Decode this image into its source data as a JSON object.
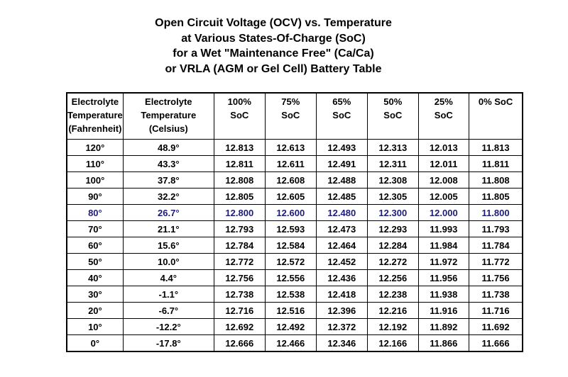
{
  "title": [
    "Open Circuit Voltage (OCV) vs. Temperature",
    "at Various States-Of-Charge (SoC)",
    "for a Wet \"Maintenance Free\" (Ca/Ca)",
    "or VRLA (AGM or Gel Cell) Battery Table"
  ],
  "table": {
    "header": [
      [
        "Electrolyte",
        "Temperature",
        "(Fahrenheit)"
      ],
      [
        "Electrolyte",
        "Temperature",
        "(Celsius)"
      ],
      [
        "100%",
        "SoC"
      ],
      [
        "75%",
        "SoC"
      ],
      [
        "65%",
        "SoC"
      ],
      [
        "50%",
        "SoC"
      ],
      [
        "25%",
        "SoC"
      ],
      [
        "0% SoC"
      ]
    ],
    "rows": [
      {
        "color": "#000000",
        "cells": [
          "120°",
          "48.9°",
          "12.813",
          "12.613",
          "12.493",
          "12.313",
          "12.013",
          "11.813"
        ]
      },
      {
        "color": "#000000",
        "cells": [
          "110°",
          "43.3°",
          "12.811",
          "12.611",
          "12.491",
          "12.311",
          "12.011",
          "11.811"
        ]
      },
      {
        "color": "#000000",
        "cells": [
          "100°",
          "37.8°",
          "12.808",
          "12.608",
          "12.488",
          "12.308",
          "12.008",
          "11.808"
        ]
      },
      {
        "color": "#000000",
        "cells": [
          "90°",
          "32.2°",
          "12.805",
          "12.605",
          "12.485",
          "12.305",
          "12.005",
          "11.805"
        ]
      },
      {
        "color": "#1c1c7a",
        "cells": [
          "80°",
          "26.7°",
          "12.800",
          "12.600",
          "12.480",
          "12.300",
          "12.000",
          "11.800"
        ]
      },
      {
        "color": "#000000",
        "cells": [
          "70°",
          "21.1°",
          "12.793",
          "12.593",
          "12.473",
          "12.293",
          "11.993",
          "11.793"
        ]
      },
      {
        "color": "#000000",
        "cells": [
          "60°",
          "15.6°",
          "12.784",
          "12.584",
          "12.464",
          "12.284",
          "11.984",
          "11.784"
        ]
      },
      {
        "color": "#000000",
        "cells": [
          "50°",
          "10.0°",
          "12.772",
          "12.572",
          "12.452",
          "12.272",
          "11.972",
          "11.772"
        ]
      },
      {
        "color": "#000000",
        "cells": [
          "40°",
          "4.4°",
          "12.756",
          "12.556",
          "12.436",
          "12.256",
          "11.956",
          "11.756"
        ]
      },
      {
        "color": "#000000",
        "cells": [
          "30°",
          "-1.1°",
          "12.738",
          "12.538",
          "12.418",
          "12.238",
          "11.938",
          "11.738"
        ]
      },
      {
        "color": "#000000",
        "cells": [
          "20°",
          "-6.7°",
          "12.716",
          "12.516",
          "12.396",
          "12.216",
          "11.916",
          "11.716"
        ]
      },
      {
        "color": "#000000",
        "cells": [
          "10°",
          "-12.2°",
          "12.692",
          "12.492",
          "12.372",
          "12.192",
          "11.892",
          "11.692"
        ]
      },
      {
        "color": "#000000",
        "cells": [
          "0°",
          "-17.8°",
          "12.666",
          "12.466",
          "12.346",
          "12.166",
          "11.866",
          "11.666"
        ]
      }
    ]
  }
}
